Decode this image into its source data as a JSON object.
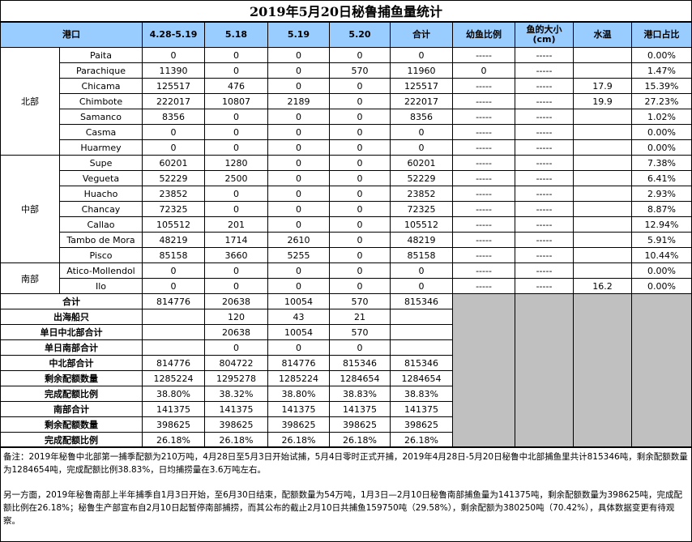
{
  "title": "2019年5月20日秘鲁捕鱼量统计",
  "headers": [
    "港口",
    "4.28-5.19",
    "5.18",
    "5.19",
    "5.20",
    "合计",
    "幼鱼比例",
    "鱼的大小\n(cm)",
    "水温",
    "港口占比"
  ],
  "port_rows": [
    {
      "region": "",
      "port": "Paita",
      "c1": "0",
      "c2": "0",
      "c3": "0",
      "c4": "0",
      "total": "0",
      "juv": "-----",
      "size": "-----",
      "temp": "",
      "share": "0.00%"
    },
    {
      "region": "",
      "port": "Parachique",
      "c1": "11390",
      "c2": "0",
      "c3": "0",
      "c4": "570",
      "total": "11960",
      "juv": "0",
      "size": "-----",
      "temp": "",
      "share": "1.47%"
    },
    {
      "region": "",
      "port": "Chicama",
      "c1": "125517",
      "c2": "476",
      "c3": "0",
      "c4": "0",
      "total": "125517",
      "juv": "-----",
      "size": "-----",
      "temp": "17.9",
      "share": "15.39%"
    },
    {
      "region": "北部",
      "port": "Chimbote",
      "c1": "222017",
      "c2": "10807",
      "c3": "2189",
      "c4": "0",
      "total": "222017",
      "juv": "-----",
      "size": "-----",
      "temp": "19.9",
      "share": "27.23%"
    },
    {
      "region": "",
      "port": "Samanco",
      "c1": "8356",
      "c2": "0",
      "c3": "0",
      "c4": "0",
      "total": "8356",
      "juv": "-----",
      "size": "-----",
      "temp": "",
      "share": "1.02%"
    },
    {
      "region": "",
      "port": "Casma",
      "c1": "0",
      "c2": "0",
      "c3": "0",
      "c4": "0",
      "total": "0",
      "juv": "-----",
      "size": "-----",
      "temp": "",
      "share": "0.00%"
    },
    {
      "region": "",
      "port": "Huarmey",
      "c1": "0",
      "c2": "0",
      "c3": "0",
      "c4": "0",
      "total": "0",
      "juv": "-----",
      "size": "-----",
      "temp": "",
      "share": "0.00%"
    },
    {
      "region": "",
      "port": "Supe",
      "c1": "60201",
      "c2": "1280",
      "c3": "0",
      "c4": "0",
      "total": "60201",
      "juv": "-----",
      "size": "-----",
      "temp": "",
      "share": "7.38%"
    },
    {
      "region": "",
      "port": "Vegueta",
      "c1": "52229",
      "c2": "2500",
      "c3": "0",
      "c4": "0",
      "total": "52229",
      "juv": "-----",
      "size": "-----",
      "temp": "",
      "share": "6.41%"
    },
    {
      "region": "",
      "port": "Huacho",
      "c1": "23852",
      "c2": "0",
      "c3": "0",
      "c4": "0",
      "total": "23852",
      "juv": "-----",
      "size": "-----",
      "temp": "",
      "share": "2.93%"
    },
    {
      "region": "中部",
      "port": "Chancay",
      "c1": "72325",
      "c2": "0",
      "c3": "0",
      "c4": "0",
      "total": "72325",
      "juv": "-----",
      "size": "-----",
      "temp": "",
      "share": "8.87%"
    },
    {
      "region": "",
      "port": "Callao",
      "c1": "105512",
      "c2": "201",
      "c3": "0",
      "c4": "0",
      "total": "105512",
      "juv": "-----",
      "size": "-----",
      "temp": "",
      "share": "12.94%"
    },
    {
      "region": "",
      "port": "Tambo de Mora",
      "c1": "48219",
      "c2": "1714",
      "c3": "2610",
      "c4": "0",
      "total": "48219",
      "juv": "-----",
      "size": "-----",
      "temp": "",
      "share": "5.91%"
    },
    {
      "region": "",
      "port": "Pisco",
      "c1": "85158",
      "c2": "3660",
      "c3": "5255",
      "c4": "0",
      "total": "85158",
      "juv": "-----",
      "size": "-----",
      "temp": "",
      "share": "10.44%"
    },
    {
      "region": "南部",
      "port": "Atico-Mollendol",
      "c1": "0",
      "c2": "0",
      "c3": "0",
      "c4": "0",
      "total": "0",
      "juv": "-----",
      "size": "-----",
      "temp": "",
      "share": "0.00%"
    },
    {
      "region": "",
      "port": "Ilo",
      "c1": "0",
      "c2": "0",
      "c3": "0",
      "c4": "0",
      "total": "0",
      "juv": "-----",
      "size": "-----",
      "temp": "16.2",
      "share": "0.00%"
    }
  ],
  "summary_rows": [
    {
      "label": "合计",
      "c1": "814776",
      "c2": "20638",
      "c3": "10054",
      "c4": "570",
      "total": "815346"
    },
    {
      "label": "出海船只",
      "c1": "",
      "c2": "120",
      "c3": "43",
      "c4": "21",
      "total": ""
    },
    {
      "label": "单日中北部合计",
      "c1": "",
      "c2": "20638",
      "c3": "10054",
      "c4": "570",
      "total": ""
    },
    {
      "label": "单日南部合计",
      "c1": "",
      "c2": "0",
      "c3": "0",
      "c4": "0",
      "total": ""
    },
    {
      "label": "中北部合计",
      "c1": "814776",
      "c2": "804722",
      "c3": "814776",
      "c4": "815346",
      "total": "815346"
    },
    {
      "label": "剩余配额数量",
      "c1": "1285224",
      "c2": "1295278",
      "c3": "1285224",
      "c4": "1284654",
      "total": "1284654"
    },
    {
      "label": "完成配额比例",
      "c1": "38.80%",
      "c2": "38.32%",
      "c3": "38.80%",
      "c4": "38.83%",
      "total": "38.83%"
    },
    {
      "label": "南部合计",
      "c1": "141375",
      "c2": "141375",
      "c3": "141375",
      "c4": "141375",
      "total": "141375"
    },
    {
      "label": "剩余配额数量",
      "c1": "398625",
      "c2": "398625",
      "c3": "398625",
      "c4": "398625",
      "total": "398625"
    },
    {
      "label": "完成配额比例",
      "c1": "26.18%",
      "c2": "26.18%",
      "c3": "26.18%",
      "c4": "26.18%",
      "total": "26.18%"
    }
  ],
  "notes": [
    "备注：2019年秘鲁中北部第一捕季配额为210万吨，4月28日至5月3日开始试捕，5月4日零时正式开捕，2019年4月28日-5月20日秘鲁中北部捕鱼里共计815346吨，剩余配额数量为1284654吨，完成配额比例38.83%，日均捕捞量在3.6万吨左右。",
    "另一方面，2019年秘鲁南部上半年捕季自1月3日开始，至6月30日结束，配额数量为54万吨，1月3日—2月10日秘鲁南部捕鱼量为141375吨，剩余配额数量为398625吨，完成配额比例在26.18%；秘鲁生产部宣布自2月10日起暂停南部捕捞，而其公布的截止2月10日共捕鱼159750吨（29.58%），剩余配额为380250吨（70.42%），具体数据变更有待观察。"
  ],
  "colors": {
    "header_bg": "#99ccff",
    "gray_cell": "#c0c0c0"
  }
}
